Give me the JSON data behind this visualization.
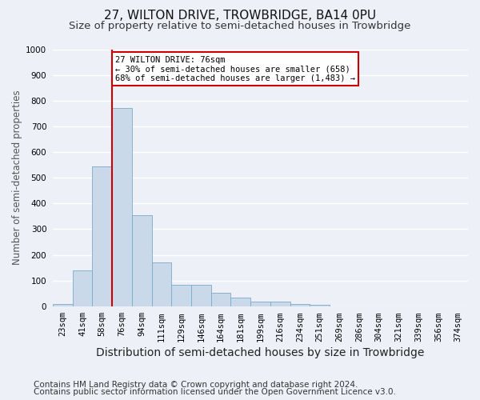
{
  "title_line1": "27, WILTON DRIVE, TROWBRIDGE, BA14 0PU",
  "title_line2": "Size of property relative to semi-detached houses in Trowbridge",
  "xlabel": "Distribution of semi-detached houses by size in Trowbridge",
  "ylabel": "Number of semi-detached properties",
  "footnote1": "Contains HM Land Registry data © Crown copyright and database right 2024.",
  "footnote2": "Contains public sector information licensed under the Open Government Licence v3.0.",
  "bin_labels": [
    "23sqm",
    "41sqm",
    "58sqm",
    "76sqm",
    "94sqm",
    "111sqm",
    "129sqm",
    "146sqm",
    "164sqm",
    "181sqm",
    "199sqm",
    "216sqm",
    "234sqm",
    "251sqm",
    "269sqm",
    "286sqm",
    "304sqm",
    "321sqm",
    "339sqm",
    "356sqm",
    "374sqm"
  ],
  "bar_values": [
    10,
    140,
    545,
    770,
    355,
    172,
    82,
    82,
    52,
    35,
    18,
    18,
    10,
    5,
    0,
    0,
    0,
    0,
    0,
    0,
    0
  ],
  "bar_color": "#c9d9ea",
  "bar_edge_color": "#7aaac8",
  "property_bin_index": 3,
  "vline_color": "#cc0000",
  "annotation_line1": "27 WILTON DRIVE: 76sqm",
  "annotation_line2": "← 30% of semi-detached houses are smaller (658)",
  "annotation_line3": "68% of semi-detached houses are larger (1,483) →",
  "annotation_box_facecolor": "#ffffff",
  "annotation_box_edgecolor": "#cc0000",
  "ylim": [
    0,
    1000
  ],
  "yticks": [
    0,
    100,
    200,
    300,
    400,
    500,
    600,
    700,
    800,
    900,
    1000
  ],
  "background_color": "#edf1f7",
  "grid_color": "#ffffff",
  "title1_fontsize": 11,
  "title2_fontsize": 9.5,
  "ylabel_fontsize": 8.5,
  "xlabel_fontsize": 10,
  "tick_fontsize": 7.5,
  "annotation_fontsize": 7.5,
  "footnote_fontsize": 7.5
}
